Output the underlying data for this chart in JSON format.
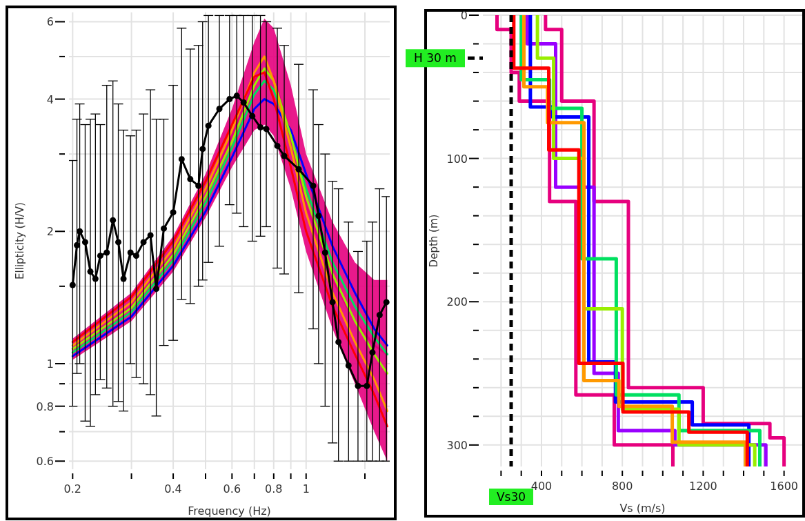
{
  "chart_data": [
    {
      "type": "line",
      "xlabel": "Frequency (Hz)",
      "ylabel": "Ellipticity (H/V)",
      "log": "xy",
      "grid": true,
      "xlim": [
        0.195,
        1.78
      ],
      "ylim": [
        0.575,
        6.3
      ],
      "xticks": [
        0.2,
        {
          "value": 0.3,
          "label": null
        },
        0.4,
        {
          "value": 0.5,
          "label": null
        },
        0.6,
        {
          "value": 0.7,
          "label": null
        },
        0.8,
        {
          "value": 0.9,
          "label": null
        },
        1,
        {
          "value": 1.5,
          "label": null
        }
      ],
      "yticks": [
        0.6,
        {
          "value": 0.7,
          "label": null
        },
        0.8,
        {
          "value": 0.9,
          "label": null
        },
        1,
        {
          "value": 1.5,
          "label": null
        },
        2,
        {
          "value": 3,
          "label": null
        },
        4,
        {
          "value": 5,
          "label": null
        },
        6
      ],
      "series": [
        {
          "color": "#e6007e",
          "x": [
            0.2,
            0.3,
            0.4,
            0.5,
            0.6,
            0.7,
            0.75,
            0.8,
            0.9,
            1.0,
            1.2,
            1.4,
            1.6,
            1.75
          ],
          "values": [
            1.08,
            1.35,
            1.78,
            2.4,
            3.3,
            4.4,
            4.7,
            4.5,
            3.3,
            2.3,
            1.55,
            1.25,
            1.1,
            1.05
          ],
          "lower": [
            1.02,
            1.25,
            1.62,
            2.15,
            2.8,
            3.4,
            3.5,
            3.3,
            2.5,
            1.8,
            1.2,
            0.9,
            0.7,
            0.6
          ],
          "upper": [
            1.14,
            1.45,
            1.95,
            2.7,
            3.8,
            5.4,
            6.1,
            5.8,
            4.3,
            3.0,
            2.1,
            1.7,
            1.55,
            1.55
          ]
        },
        {
          "color": "#0000ff",
          "x": [
            0.2,
            0.3,
            0.4,
            0.5,
            0.6,
            0.7,
            0.75,
            0.8,
            0.9,
            1.0,
            1.2,
            1.4,
            1.6,
            1.75
          ],
          "values": [
            1.04,
            1.28,
            1.67,
            2.22,
            2.95,
            3.8,
            4.0,
            3.9,
            3.4,
            2.7,
            1.85,
            1.45,
            1.2,
            1.1
          ]
        },
        {
          "color": "#00e060",
          "x": [
            0.2,
            0.3,
            0.4,
            0.5,
            0.6,
            0.7,
            0.75,
            0.8,
            0.9,
            1.0,
            1.2,
            1.4,
            1.6,
            1.75
          ],
          "values": [
            1.06,
            1.31,
            1.72,
            2.32,
            3.1,
            4.1,
            4.4,
            4.2,
            3.3,
            2.5,
            1.7,
            1.35,
            1.15,
            1.05
          ]
        },
        {
          "color": "#99ee00",
          "x": [
            0.2,
            0.3,
            0.4,
            0.5,
            0.6,
            0.7,
            0.75,
            0.8,
            0.9,
            1.0,
            1.2,
            1.4,
            1.6,
            1.75
          ],
          "values": [
            1.08,
            1.34,
            1.77,
            2.4,
            3.2,
            4.3,
            4.7,
            4.4,
            3.3,
            2.4,
            1.6,
            1.25,
            1.05,
            0.95
          ]
        },
        {
          "color": "#ff9900",
          "x": [
            0.2,
            0.3,
            0.4,
            0.5,
            0.6,
            0.7,
            0.75,
            0.8,
            0.9,
            1.0,
            1.2,
            1.4,
            1.6,
            1.75
          ],
          "values": [
            1.1,
            1.38,
            1.83,
            2.5,
            3.4,
            4.6,
            5.0,
            4.4,
            3.1,
            2.2,
            1.45,
            1.12,
            0.92,
            0.78
          ]
        },
        {
          "color": "#ff0000",
          "x": [
            0.2,
            0.3,
            0.4,
            0.5,
            0.6,
            0.7,
            0.75,
            0.8,
            0.9,
            1.0,
            1.2,
            1.4,
            1.6,
            1.75
          ],
          "values": [
            1.12,
            1.42,
            1.9,
            2.6,
            3.5,
            4.5,
            4.6,
            4.0,
            2.8,
            2.0,
            1.35,
            1.05,
            0.85,
            0.72
          ]
        },
        {
          "color": "#000000",
          "marker": "circle",
          "x": [
            0.2,
            0.206,
            0.21,
            0.218,
            0.226,
            0.234,
            0.242,
            0.253,
            0.264,
            0.274,
            0.284,
            0.298,
            0.31,
            0.326,
            0.342,
            0.356,
            0.375,
            0.4,
            0.424,
            0.45,
            0.476,
            0.49,
            0.51,
            0.55,
            0.59,
            0.62,
            0.65,
            0.69,
            0.73,
            0.76,
            0.82,
            0.86,
            0.95,
            1.05,
            1.09,
            1.14,
            1.2,
            1.25,
            1.34,
            1.43,
            1.52,
            1.58,
            1.66,
            1.74
          ],
          "values": [
            1.51,
            1.86,
            2.0,
            1.89,
            1.62,
            1.56,
            1.76,
            1.79,
            2.12,
            1.89,
            1.56,
            1.79,
            1.76,
            1.89,
            1.96,
            1.48,
            2.03,
            2.21,
            2.92,
            2.63,
            2.54,
            3.08,
            3.48,
            3.8,
            4.0,
            4.07,
            3.93,
            3.66,
            3.45,
            3.42,
            3.13,
            2.97,
            2.77,
            2.54,
            2.17,
            1.79,
            1.38,
            1.12,
            0.99,
            0.89,
            0.89,
            1.06,
            1.29,
            1.38
          ],
          "errors": [
            [
              0.8,
              2.9
            ],
            [
              0.95,
              3.6
            ],
            [
              1.0,
              3.9
            ],
            [
              0.74,
              3.5
            ],
            [
              0.72,
              3.6
            ],
            [
              0.85,
              3.7
            ],
            [
              0.92,
              3.5
            ],
            [
              0.88,
              4.3
            ],
            [
              0.8,
              4.4
            ],
            [
              0.82,
              3.9
            ],
            [
              0.78,
              3.4
            ],
            [
              1.0,
              3.3
            ],
            [
              0.93,
              3.4
            ],
            [
              0.9,
              3.7
            ],
            [
              0.85,
              4.2
            ],
            [
              0.76,
              3.6
            ],
            [
              1.1,
              3.6
            ],
            [
              1.13,
              4.3
            ],
            [
              1.4,
              5.8
            ],
            [
              1.37,
              5.2
            ],
            [
              1.5,
              5.3
            ],
            [
              1.55,
              6.0
            ],
            [
              1.7,
              6.2
            ],
            [
              1.85,
              6.2
            ],
            [
              2.3,
              6.2
            ],
            [
              2.2,
              6.2
            ],
            [
              2.05,
              6.2
            ],
            [
              1.9,
              6.2
            ],
            [
              1.95,
              6.2
            ],
            [
              2.05,
              6.0
            ],
            [
              1.65,
              5.8
            ],
            [
              1.6,
              5.3
            ],
            [
              1.45,
              4.8
            ],
            [
              1.2,
              4.2
            ],
            [
              1.0,
              3.5
            ],
            [
              0.8,
              3.0
            ],
            [
              0.66,
              2.6
            ],
            [
              0.6,
              2.5
            ],
            [
              0.6,
              2.1
            ],
            [
              0.6,
              1.8
            ],
            [
              0.6,
              1.9
            ],
            [
              0.6,
              2.1
            ],
            [
              0.6,
              2.5
            ],
            [
              0.6,
              2.4
            ]
          ]
        }
      ]
    },
    {
      "type": "line",
      "xlabel": "Vs (m/s)",
      "ylabel": "Depth (m)",
      "grid": true,
      "xlim": [
        110,
        1690
      ],
      "ylim": [
        315,
        0
      ],
      "xticks": [
        {
          "value": 200,
          "label": null
        },
        {
          "value": 300,
          "label": null
        },
        400,
        {
          "value": 500,
          "label": null
        },
        {
          "value": 600,
          "label": null
        },
        {
          "value": 700,
          "label": null
        },
        800,
        {
          "value": 900,
          "label": null
        },
        {
          "value": 1000,
          "label": null
        },
        {
          "value": 1100,
          "label": null
        },
        1200,
        {
          "value": 1300,
          "label": null
        },
        {
          "value": 1400,
          "label": null
        },
        {
          "value": 1500,
          "label": null
        },
        1600
      ],
      "yticks": [
        0,
        {
          "value": 20,
          "label": null
        },
        {
          "value": 40,
          "label": null
        },
        {
          "value": 60,
          "label": null
        },
        {
          "value": 80,
          "label": null
        },
        100,
        {
          "value": 120,
          "label": null
        },
        {
          "value": 140,
          "label": null
        },
        {
          "value": 160,
          "label": null
        },
        {
          "value": 180,
          "label": null
        },
        200,
        {
          "value": 220,
          "label": null
        },
        {
          "value": 240,
          "label": null
        },
        {
          "value": 260,
          "label": null
        },
        {
          "value": 280,
          "label": null
        },
        300
      ],
      "ref_lines": [
        {
          "axis": "x",
          "value": 250,
          "label": "Vs30",
          "color": "#000000",
          "line_style": "dashed"
        },
        {
          "axis": "y",
          "value": 30,
          "label": "H 30 m",
          "color": "#000000",
          "line_style": "dashed"
        }
      ],
      "series": [
        {
          "color": "#e6007e",
          "x": [
            180,
            180,
            250,
            250,
            290,
            290,
            440,
            440,
            570,
            570,
            760,
            760,
            1050,
            1050
          ],
          "values": [
            0,
            10,
            10,
            40,
            40,
            60,
            60,
            130,
            130,
            265,
            265,
            300,
            300,
            315
          ]
        },
        {
          "color": "#e6007e",
          "x": [
            420,
            420,
            500,
            500,
            660,
            660,
            830,
            830,
            1200,
            1200,
            1530,
            1530,
            1600,
            1600
          ],
          "values": [
            0,
            10,
            10,
            60,
            60,
            130,
            130,
            260,
            260,
            285,
            285,
            295,
            295,
            315
          ]
        },
        {
          "color": "#9900ff",
          "x": [
            330,
            330,
            470,
            470,
            660,
            660,
            780,
            780,
            1060,
            1060,
            1510,
            1510
          ],
          "values": [
            0,
            20,
            20,
            120,
            120,
            250,
            250,
            290,
            290,
            300,
            300,
            315
          ]
        },
        {
          "color": "#0000ff",
          "x": [
            345,
            345,
            455,
            455,
            634,
            634,
            766,
            766,
            1146,
            1146,
            1426,
            1426
          ],
          "values": [
            0,
            64,
            64,
            71,
            71,
            242,
            242,
            270,
            270,
            286,
            286,
            315
          ]
        },
        {
          "color": "#00e060",
          "x": [
            300,
            300,
            440,
            440,
            600,
            600,
            770,
            770,
            1080,
            1080,
            1480,
            1480
          ],
          "values": [
            0,
            45,
            45,
            65,
            65,
            170,
            170,
            265,
            265,
            290,
            290,
            315
          ]
        },
        {
          "color": "#99ee00",
          "x": [
            380,
            380,
            460,
            460,
            610,
            610,
            800,
            800,
            1080,
            1080,
            1455,
            1455
          ],
          "values": [
            0,
            30,
            30,
            100,
            100,
            205,
            205,
            275,
            275,
            300,
            300,
            315
          ]
        },
        {
          "color": "#ff9900",
          "x": [
            313,
            313,
            430,
            430,
            610,
            610,
            783,
            783,
            1047,
            1047,
            1410,
            1410
          ],
          "values": [
            0,
            50,
            50,
            75,
            75,
            255,
            255,
            273,
            273,
            298,
            298,
            315
          ]
        },
        {
          "color": "#ff0000",
          "x": [
            263,
            263,
            436,
            436,
            585,
            585,
            803,
            803,
            1129,
            1129,
            1418,
            1418
          ],
          "values": [
            0,
            37,
            37,
            94,
            94,
            243,
            243,
            277,
            277,
            291,
            291,
            315
          ]
        }
      ]
    }
  ]
}
